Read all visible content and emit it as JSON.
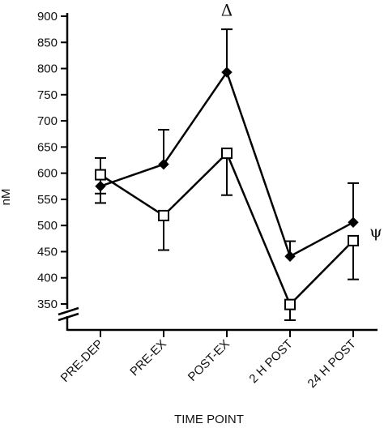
{
  "chart_data": {
    "type": "line",
    "categories": [
      "PRE-DEP",
      "PRE-EX",
      "POST-EX",
      "2 H POST",
      "24 H POST"
    ],
    "xlabel": "TIME POINT",
    "ylabel": "nM",
    "ylim": [
      350,
      900
    ],
    "yticks": [
      350,
      400,
      450,
      500,
      550,
      600,
      650,
      700,
      750,
      800,
      850,
      900
    ],
    "axis_break": true,
    "grid": false,
    "legend": "none",
    "series": [
      {
        "marker": "filled-diamond",
        "color": "#000000",
        "values": [
          575,
          617,
          793,
          441,
          506
        ],
        "error_upper": [
          629,
          683,
          875,
          470,
          581
        ],
        "error_lower": [
          543,
          617,
          793,
          441,
          506
        ]
      },
      {
        "marker": "open-square",
        "color": "#000000",
        "values": [
          597,
          519,
          638,
          349,
          471
        ],
        "error_upper": [
          597,
          519,
          638,
          349,
          471
        ],
        "error_lower": [
          561,
          453,
          558,
          319,
          397
        ]
      }
    ],
    "annotations": [
      {
        "text": "Δ",
        "category": "POST-EX",
        "y": 910
      },
      {
        "text": "ψ",
        "category": "24 H POST",
        "y": 487
      }
    ]
  }
}
